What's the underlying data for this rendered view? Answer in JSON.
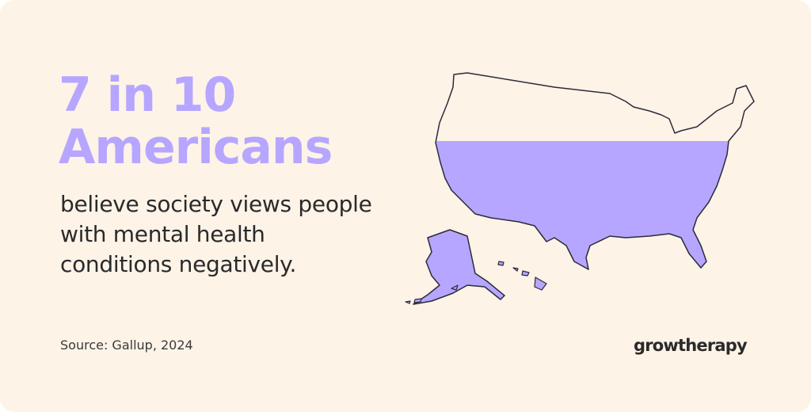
{
  "headline": {
    "lines": [
      "7 in 10",
      "Americans"
    ]
  },
  "body": {
    "lines": [
      "believe society views people",
      "with mental health",
      "conditions negatively."
    ]
  },
  "source": "Source: Gallup, 2024",
  "brand": "growtherapy"
}
